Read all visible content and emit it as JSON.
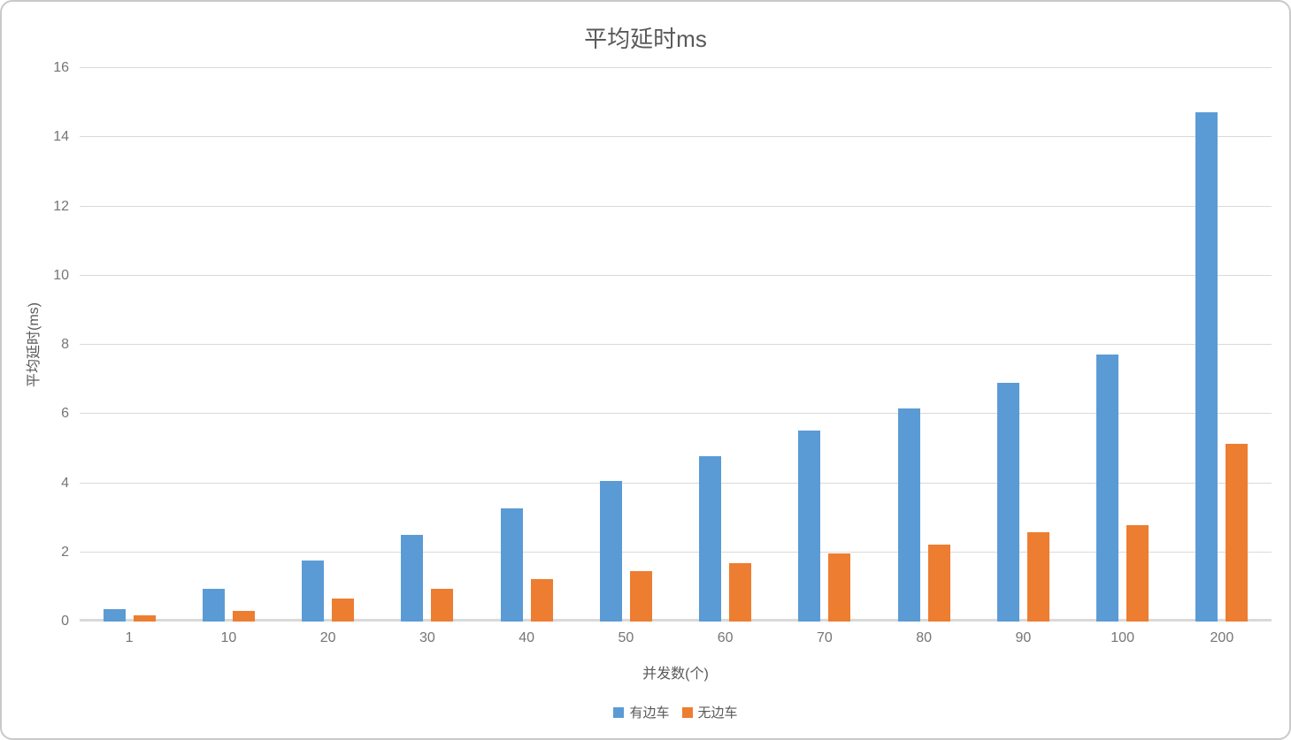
{
  "chart_data": {
    "type": "bar",
    "title": "平均延时ms",
    "xlabel": "并发数(个)",
    "ylabel": "平均延时(ms)",
    "categories": [
      "1",
      "10",
      "20",
      "30",
      "40",
      "50",
      "60",
      "70",
      "80",
      "90",
      "100",
      "200"
    ],
    "series": [
      {
        "name": "有边车",
        "color": "#5B9BD5",
        "values": [
          0.37,
          0.95,
          1.77,
          2.5,
          3.28,
          4.07,
          4.77,
          5.52,
          6.17,
          6.9,
          7.73,
          14.72
        ]
      },
      {
        "name": "无边车",
        "color": "#ED7D31",
        "values": [
          0.17,
          0.31,
          0.67,
          0.95,
          1.22,
          1.45,
          1.68,
          1.97,
          2.23,
          2.57,
          2.78,
          5.13
        ]
      }
    ],
    "ylim": [
      0,
      16
    ],
    "yticks": [
      0,
      2,
      4,
      6,
      8,
      10,
      12,
      14,
      16
    ],
    "grid": true,
    "gridline_color": "#d9d9d9",
    "tick_text_color": "#757575",
    "title_text_color": "#595959",
    "legend_position": "bottom"
  }
}
